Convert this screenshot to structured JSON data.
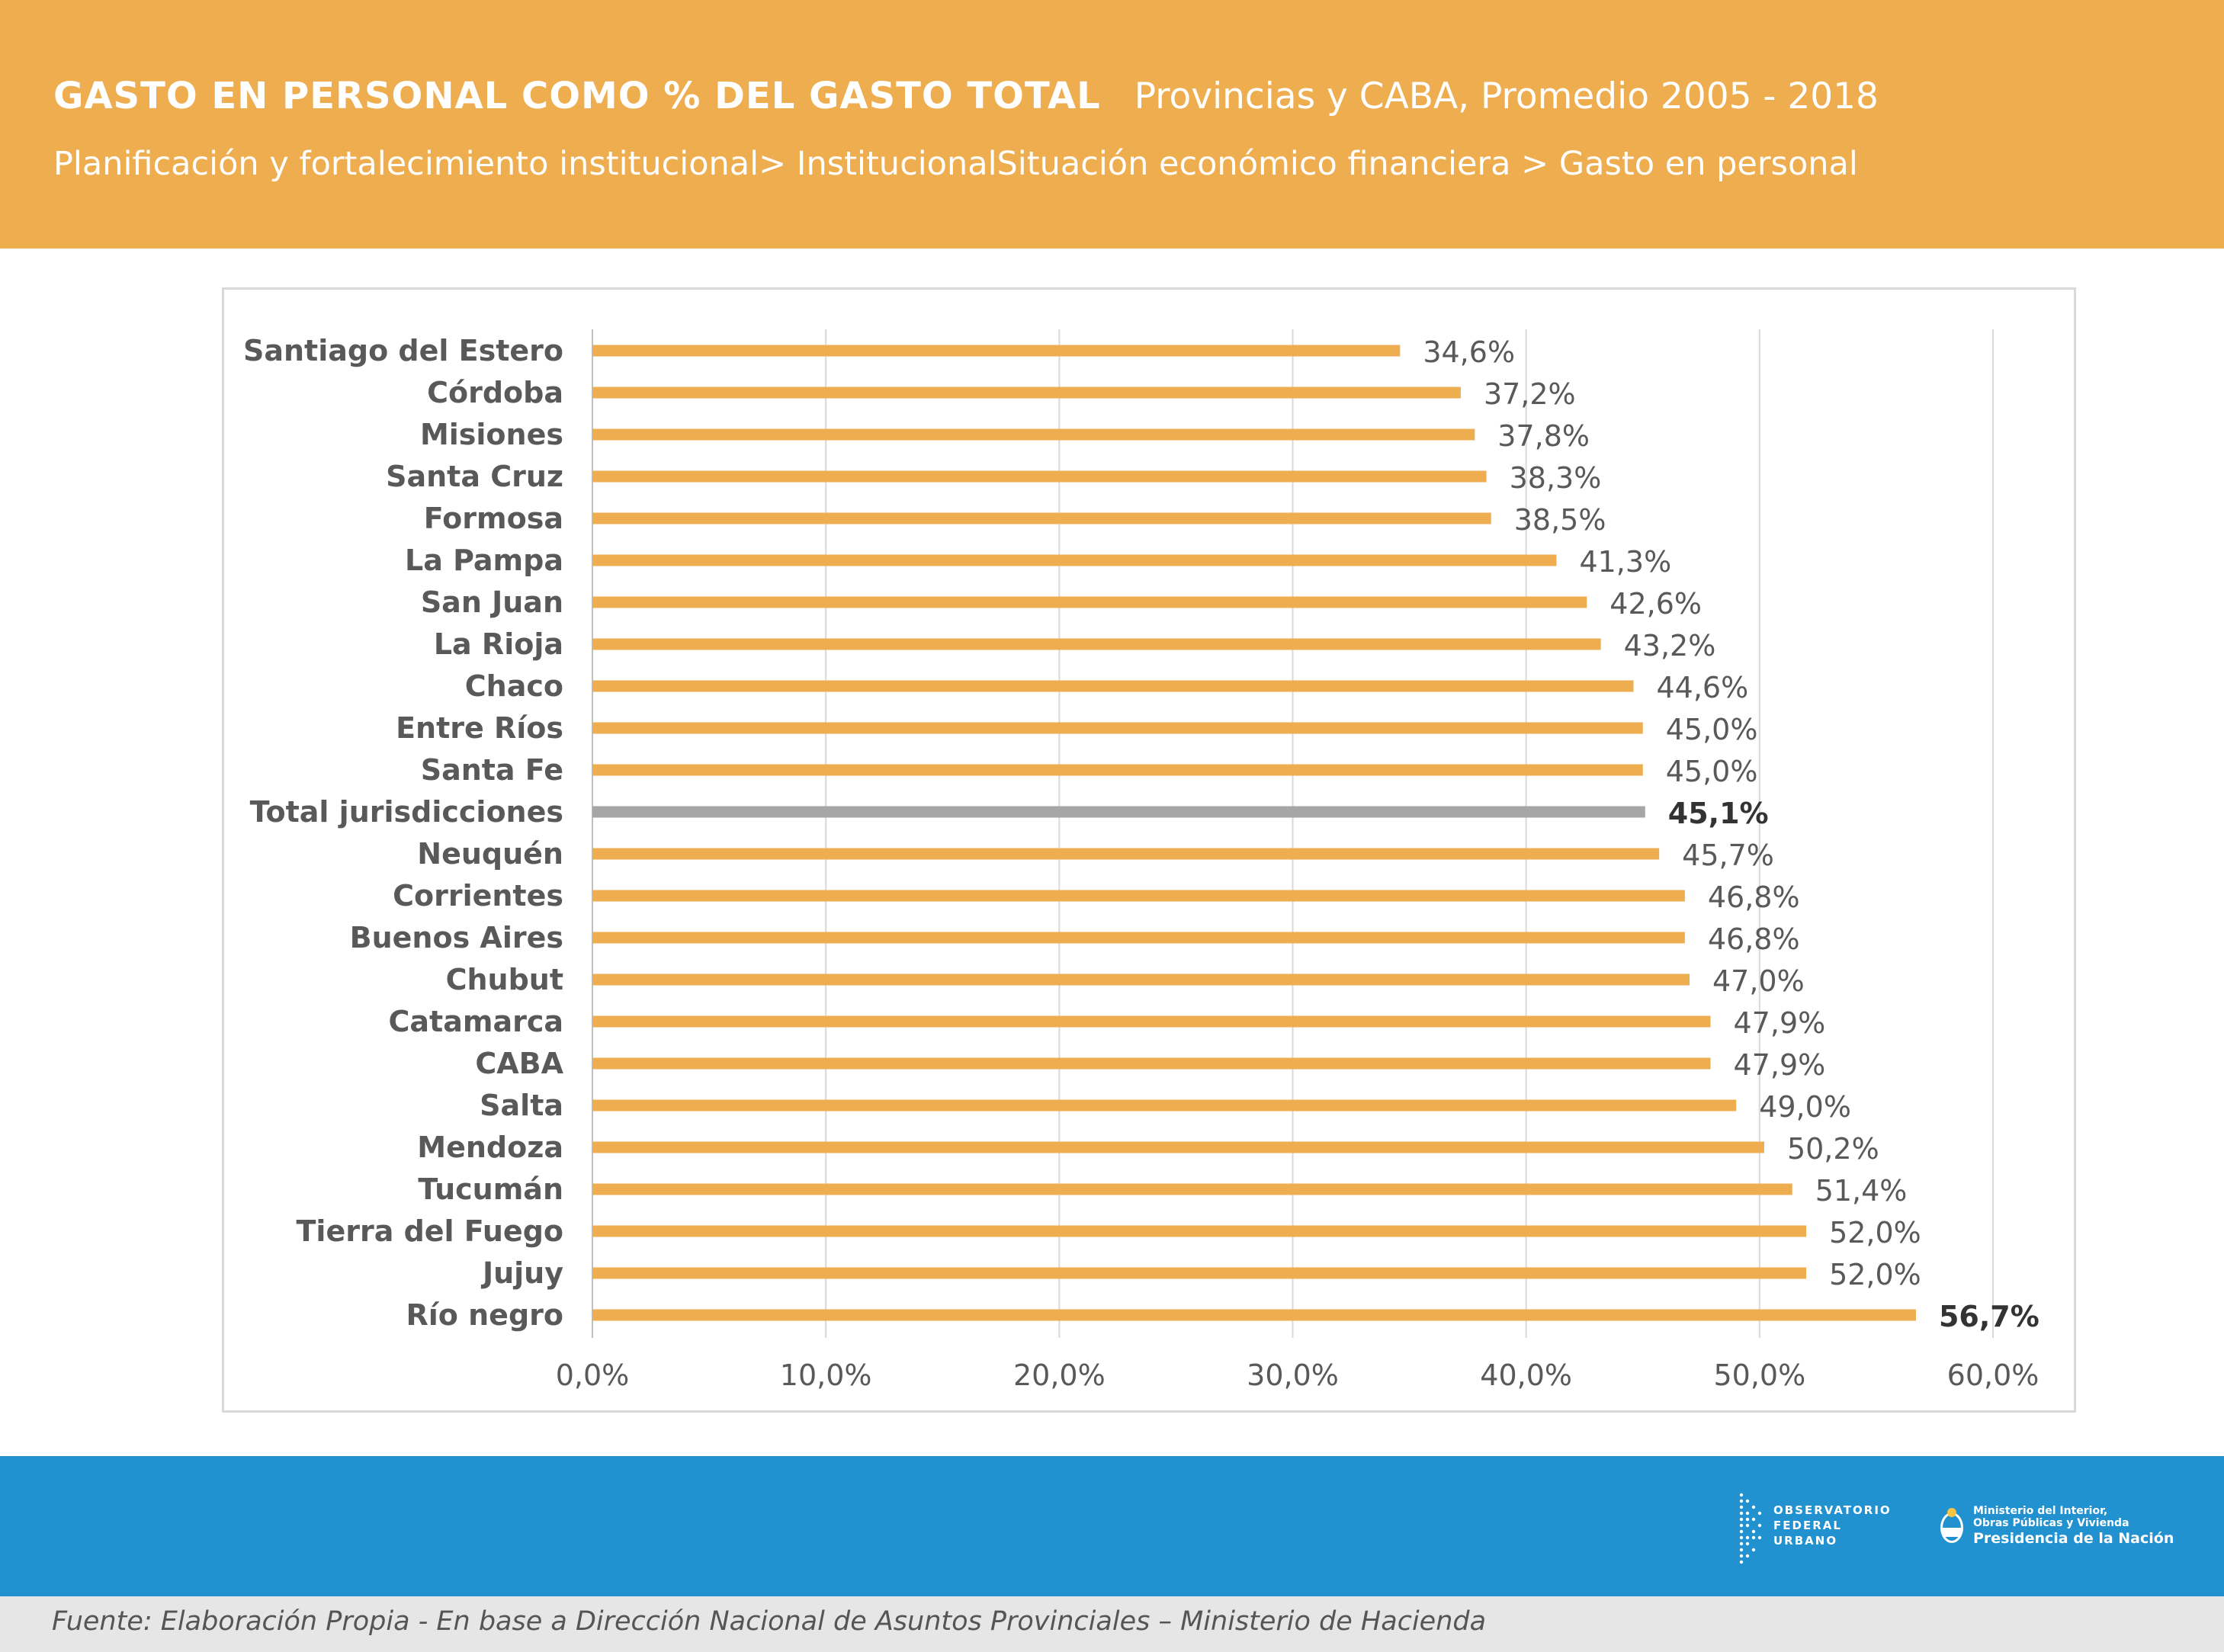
{
  "header": {
    "title": "GASTO EN PERSONAL COMO % DEL GASTO TOTAL",
    "subtitle": "Provincias y CABA,  Promedio 2005 - 2018",
    "breadcrumb": "Planificación y fortalecimiento institucional> InstitucionalSituación económico financiera > Gasto en personal"
  },
  "colors": {
    "header_bg": "#eeae50",
    "bar": "#eeae50",
    "bar_total": "#a6a6a6",
    "footer_band": "#2291d0",
    "source_bg": "#e6e6e6"
  },
  "chart_data": {
    "type": "bar",
    "orientation": "horizontal",
    "categories": [
      "Santiago del Estero",
      "Córdoba",
      "Misiones",
      "Santa Cruz",
      "Formosa",
      "La Pampa",
      "San Juan",
      "La Rioja",
      "Chaco",
      "Entre Ríos",
      "Santa Fe",
      "Total jurisdicciones",
      "Neuquén",
      "Corrientes",
      "Buenos Aires",
      "Chubut",
      "Catamarca",
      "CABA",
      "Salta",
      "Mendoza",
      "Tucumán",
      "Tierra del Fuego",
      "Jujuy",
      "Río negro"
    ],
    "values": [
      34.6,
      37.2,
      37.8,
      38.3,
      38.5,
      41.3,
      42.6,
      43.2,
      44.6,
      45.0,
      45.0,
      45.1,
      45.7,
      46.8,
      46.8,
      47.0,
      47.9,
      47.9,
      49.0,
      50.2,
      51.4,
      52.0,
      52.0,
      56.7
    ],
    "value_labels": [
      "34,6%",
      "37,2%",
      "37,8%",
      "38,3%",
      "38,5%",
      "41,3%",
      "42,6%",
      "43,2%",
      "44,6%",
      "45,0%",
      "45,0%",
      "45,1%",
      "45,7%",
      "46,8%",
      "46,8%",
      "47,0%",
      "47,9%",
      "47,9%",
      "49,0%",
      "50,2%",
      "51,4%",
      "52,0%",
      "52,0%",
      "56,7%"
    ],
    "highlight_category": "Total jurisdicciones",
    "bold_labels": [
      "Total jurisdicciones",
      "Río negro"
    ],
    "x_ticks": [
      0,
      10,
      20,
      30,
      40,
      50,
      60
    ],
    "x_tick_labels": [
      "0,0%",
      "10,0%",
      "20,0%",
      "30,0%",
      "40,0%",
      "50,0%",
      "60,0%"
    ],
    "xlim": [
      0,
      60
    ],
    "grid": true,
    "legend": false
  },
  "footer": {
    "source": "Fuente: Elaboración Propia - En base  a Dirección Nacional de Asuntos Provinciales – Ministerio de Hacienda",
    "logo_ofu": [
      "OBSERVATORIO",
      "FEDERAL",
      "URBANO"
    ],
    "logo_ministerio": [
      "Ministerio del Interior,",
      "Obras Públicas y Vivienda",
      "Presidencia de la Nación"
    ]
  }
}
